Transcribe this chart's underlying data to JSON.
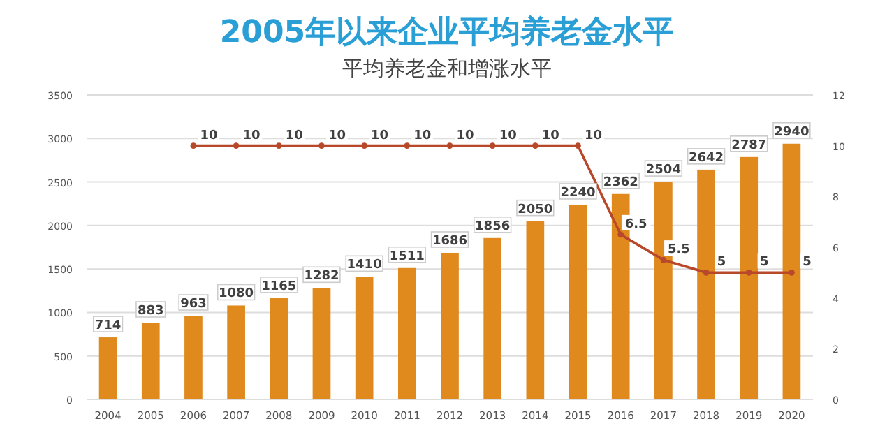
{
  "chart_data": {
    "type": "bar",
    "title": "2005年以来企业平均养老金水平",
    "subtitle": "平均养老金和增涨水平",
    "categories": [
      "2004",
      "2005",
      "2006",
      "2007",
      "2008",
      "2009",
      "2010",
      "2011",
      "2012",
      "2013",
      "2014",
      "2015",
      "2016",
      "2017",
      "2018",
      "2019",
      "2020"
    ],
    "series": [
      {
        "color": "#e08a1e",
        "values": [
          714,
          883,
          963,
          1080,
          1165,
          1282,
          1410,
          1511,
          1686,
          1856,
          2050,
          2240,
          2362,
          2504,
          2642,
          2787,
          2940
        ]
      },
      {
        "type": "line",
        "axis": "y2",
        "color": "#b8482a",
        "marker": "circle",
        "values": [
          null,
          null,
          10,
          10,
          10,
          10,
          10,
          10,
          10,
          10,
          10,
          10,
          6.5,
          5.5,
          5,
          5,
          5
        ]
      }
    ],
    "ylim": [
      0,
      3500
    ],
    "yticks": [
      0,
      500,
      1000,
      1500,
      2000,
      2500,
      3000,
      3500
    ],
    "y2lim": [
      0,
      12
    ],
    "y2ticks": [
      0,
      2,
      4,
      6,
      8,
      10,
      12
    ],
    "grid": "y",
    "data_labels": true
  }
}
